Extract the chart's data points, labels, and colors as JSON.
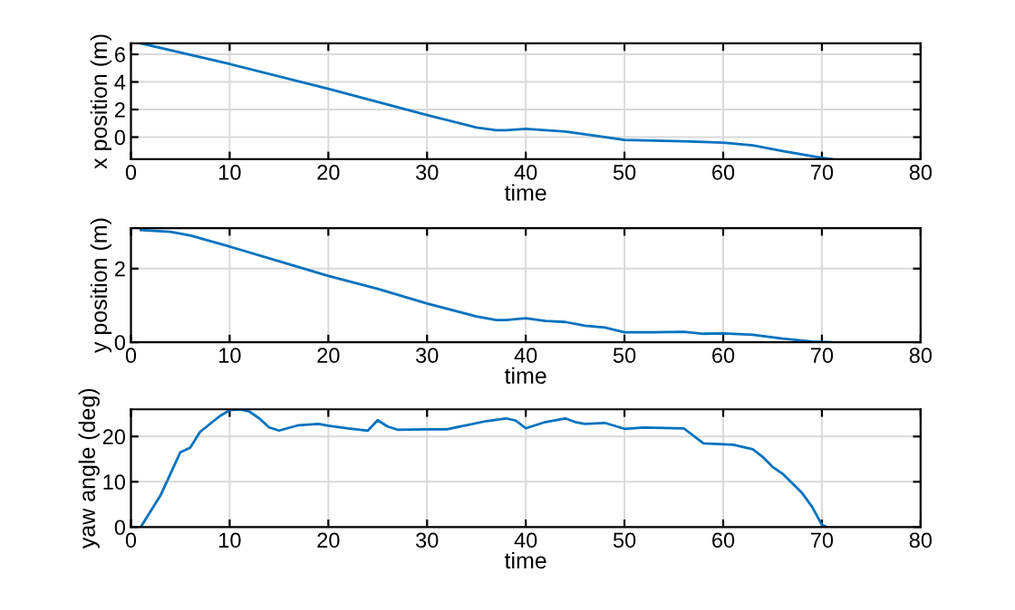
{
  "chart_data": [
    {
      "type": "line",
      "xlabel": "time",
      "ylabel": "x position (m)",
      "xlim": [
        0,
        80
      ],
      "xticks": [
        0,
        10,
        20,
        30,
        40,
        50,
        60,
        70,
        80
      ],
      "ylim": [
        -1.6,
        6.8
      ],
      "yticks": [
        0,
        2,
        4,
        6
      ],
      "grid": true,
      "series": [
        {
          "color": "#0072bd",
          "x": [
            1,
            10,
            20,
            30,
            35,
            37,
            38,
            40,
            44,
            47,
            50,
            56,
            60,
            63,
            66,
            70,
            71
          ],
          "values": [
            6.8,
            5.3,
            3.5,
            1.6,
            0.7,
            0.5,
            0.5,
            0.6,
            0.4,
            0.1,
            -0.2,
            -0.3,
            -0.4,
            -0.6,
            -1.0,
            -1.5,
            -1.6
          ]
        }
      ]
    },
    {
      "type": "line",
      "xlabel": "time",
      "ylabel": "y position (m)",
      "xlim": [
        0,
        80
      ],
      "xticks": [
        0,
        10,
        20,
        30,
        40,
        50,
        60,
        70,
        80
      ],
      "ylim": [
        0,
        3.1
      ],
      "yticks": [
        0,
        2
      ],
      "grid": true,
      "series": [
        {
          "color": "#0072bd",
          "x": [
            1,
            4,
            6,
            10,
            15,
            20,
            25,
            30,
            35,
            37,
            38,
            40,
            42,
            44,
            46,
            48,
            50,
            53,
            56,
            58,
            60,
            63,
            66,
            69,
            71
          ],
          "values": [
            3.05,
            3.0,
            2.9,
            2.6,
            2.2,
            1.8,
            1.45,
            1.05,
            0.7,
            0.6,
            0.6,
            0.65,
            0.58,
            0.55,
            0.45,
            0.4,
            0.27,
            0.27,
            0.28,
            0.23,
            0.24,
            0.2,
            0.1,
            0.02,
            0
          ]
        }
      ]
    },
    {
      "type": "line",
      "xlabel": "time",
      "ylabel": "yaw angle (deg)",
      "xlim": [
        0,
        80
      ],
      "xticks": [
        0,
        10,
        20,
        30,
        40,
        50,
        60,
        70,
        80
      ],
      "ylim": [
        0,
        26
      ],
      "yticks": [
        0,
        10,
        20
      ],
      "grid": true,
      "series": [
        {
          "color": "#0072bd",
          "x": [
            1,
            3,
            5,
            6,
            7,
            9,
            10,
            11,
            12,
            13,
            14,
            15,
            17,
            19,
            20,
            22,
            24,
            25,
            26,
            27,
            30,
            32,
            34,
            36,
            38,
            39,
            40,
            42,
            44,
            45,
            46,
            48,
            50,
            52,
            56,
            58,
            60,
            61,
            63,
            64,
            65,
            66,
            68,
            69,
            70,
            70.5
          ],
          "values": [
            0,
            7,
            16.5,
            17.5,
            21,
            24.5,
            25.8,
            26,
            25.5,
            24,
            22,
            21.3,
            22.5,
            22.8,
            22.4,
            21.8,
            21.3,
            23.6,
            22.2,
            21.5,
            21.6,
            21.6,
            22.5,
            23.4,
            24,
            23.5,
            21.8,
            23.2,
            24,
            23.2,
            22.8,
            23,
            21.7,
            22,
            21.8,
            18.5,
            18.3,
            18.2,
            17.2,
            15.5,
            13.3,
            11.8,
            7.5,
            4.5,
            0.5,
            0
          ]
        }
      ]
    }
  ]
}
